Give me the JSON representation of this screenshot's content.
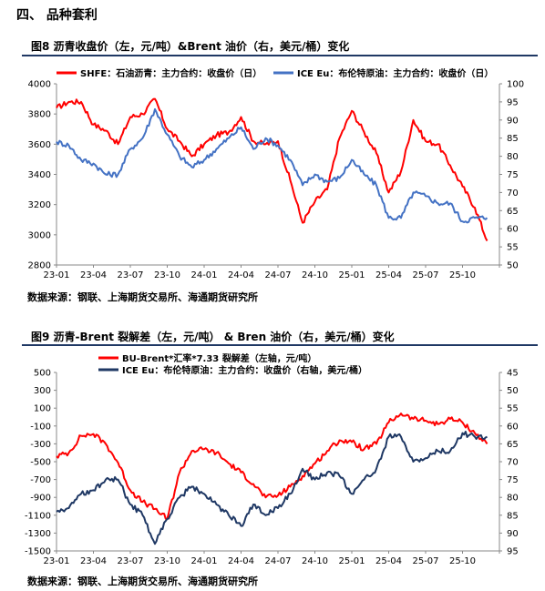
{
  "section": {
    "title": "四、 品种套利"
  },
  "figure8": {
    "title": "图8  沥青收盘价（左，元/吨）&Brent 油价（右，美元/桶）变化",
    "source": "数据来源：钢联、上海期货交易所、海通期货研究所"
  },
  "figure9": {
    "title": "图9  沥青-Brent 裂解差（左，元/吨） & Bren 油价（右，美元/桶）变化",
    "source": "数据来源：钢联、上海期货交易所、海通期货研究所"
  },
  "chart_data": [
    {
      "type": "line",
      "x_ticks": [
        "23-01",
        "23-04",
        "23-07",
        "23-10",
        "24-01",
        "24-04",
        "24-07",
        "24-10",
        "25-01",
        "25-04",
        "25-07",
        "25-10"
      ],
      "y_left": {
        "lim": [
          2800,
          4000
        ],
        "ticks": [
          2800,
          3000,
          3200,
          3400,
          3600,
          3800,
          4000
        ]
      },
      "y_right": {
        "lim": [
          50,
          100
        ],
        "ticks": [
          50,
          55,
          60,
          65,
          70,
          75,
          80,
          85,
          90,
          95,
          100
        ]
      },
      "grid": false,
      "legend_position": "top",
      "series": [
        {
          "name": "SHFE：石油沥青：主力合约：收盘价（日）",
          "axis": "left",
          "color": "#ff0000",
          "points": [
            [
              "23-01",
              3840
            ],
            [
              "23-02",
              3880
            ],
            [
              "23-03",
              3880
            ],
            [
              "23-04",
              3730
            ],
            [
              "23-05",
              3690
            ],
            [
              "23-06",
              3600
            ],
            [
              "23-07",
              3780
            ],
            [
              "23-08",
              3800
            ],
            [
              "23-09",
              3900
            ],
            [
              "23-10",
              3700
            ],
            [
              "23-11",
              3620
            ],
            [
              "23-12",
              3520
            ],
            [
              "24-01",
              3600
            ],
            [
              "24-02",
              3660
            ],
            [
              "24-03",
              3680
            ],
            [
              "24-04",
              3780
            ],
            [
              "24-05",
              3620
            ],
            [
              "24-06",
              3600
            ],
            [
              "24-07",
              3620
            ],
            [
              "24-08",
              3360
            ],
            [
              "24-09",
              3080
            ],
            [
              "24-10",
              3220
            ],
            [
              "24-11",
              3300
            ],
            [
              "24-12",
              3640
            ],
            [
              "25-01",
              3820
            ],
            [
              "25-02",
              3680
            ],
            [
              "25-03",
              3540
            ],
            [
              "25-04",
              3280
            ],
            [
              "25-05",
              3420
            ],
            [
              "25-06",
              3760
            ],
            [
              "25-07",
              3620
            ],
            [
              "25-08",
              3600
            ],
            [
              "25-09",
              3460
            ],
            [
              "25-10",
              3320
            ],
            [
              "25-11",
              3180
            ],
            [
              "25-12",
              2960
            ]
          ]
        },
        {
          "name": "ICE Eu：布伦特原油：主力合约：收盘价（日）",
          "axis": "right",
          "color": "#4472c4",
          "points": [
            [
              "23-01",
              84
            ],
            [
              "23-02",
              83
            ],
            [
              "23-03",
              79
            ],
            [
              "23-04",
              78
            ],
            [
              "23-05",
              75
            ],
            [
              "23-06",
              75
            ],
            [
              "23-07",
              82
            ],
            [
              "23-08",
              85
            ],
            [
              "23-09",
              93
            ],
            [
              "23-10",
              86
            ],
            [
              "23-11",
              80
            ],
            [
              "23-12",
              77
            ],
            [
              "24-01",
              79
            ],
            [
              "24-02",
              82
            ],
            [
              "24-03",
              85
            ],
            [
              "24-04",
              88
            ],
            [
              "24-05",
              82
            ],
            [
              "24-06",
              85
            ],
            [
              "24-07",
              83
            ],
            [
              "24-08",
              79
            ],
            [
              "24-09",
              72
            ],
            [
              "24-10",
              75
            ],
            [
              "24-11",
              73
            ],
            [
              "24-12",
              74
            ],
            [
              "25-01",
              79
            ],
            [
              "25-02",
              75
            ],
            [
              "25-03",
              72
            ],
            [
              "25-04",
              63
            ],
            [
              "25-05",
              63
            ],
            [
              "25-06",
              70
            ],
            [
              "25-07",
              69
            ],
            [
              "25-08",
              67
            ],
            [
              "25-09",
              67
            ],
            [
              "25-10",
              62
            ],
            [
              "25-11",
              63
            ],
            [
              "25-12",
              63
            ]
          ]
        }
      ]
    },
    {
      "type": "line",
      "x_ticks": [
        "23-01",
        "23-04",
        "23-07",
        "23-10",
        "24-01",
        "24-04",
        "24-07",
        "24-10",
        "25-01",
        "25-04",
        "25-07",
        "25-10"
      ],
      "y_left": {
        "lim": [
          -1500,
          500
        ],
        "ticks": [
          -1500,
          -1300,
          -1100,
          -900,
          -700,
          -500,
          -300,
          -100,
          100,
          300,
          500
        ]
      },
      "y_right": {
        "lim": [
          95,
          45
        ],
        "ticks": [
          95,
          90,
          85,
          80,
          75,
          70,
          65,
          60,
          55,
          50,
          45
        ],
        "reversed": true
      },
      "grid": false,
      "legend_position": "top",
      "series": [
        {
          "name": "BU-Brent*汇率*7.33 裂解差（左轴，元/吨）",
          "axis": "left",
          "color": "#ff0000",
          "points": [
            [
              "23-01",
              -440
            ],
            [
              "23-02",
              -400
            ],
            [
              "23-03",
              -210
            ],
            [
              "23-04",
              -190
            ],
            [
              "23-05",
              -300
            ],
            [
              "23-06",
              -510
            ],
            [
              "23-07",
              -820
            ],
            [
              "23-08",
              -950
            ],
            [
              "23-09",
              -1030
            ],
            [
              "23-10",
              -1140
            ],
            [
              "23-11",
              -620
            ],
            [
              "23-12",
              -380
            ],
            [
              "24-01",
              -360
            ],
            [
              "24-02",
              -400
            ],
            [
              "24-03",
              -520
            ],
            [
              "24-04",
              -620
            ],
            [
              "24-05",
              -750
            ],
            [
              "24-06",
              -900
            ],
            [
              "24-07",
              -880
            ],
            [
              "24-08",
              -780
            ],
            [
              "24-09",
              -660
            ],
            [
              "24-10",
              -520
            ],
            [
              "24-11",
              -380
            ],
            [
              "24-12",
              -260
            ],
            [
              "25-01",
              -280
            ],
            [
              "25-02",
              -360
            ],
            [
              "25-03",
              -300
            ],
            [
              "25-04",
              -60
            ],
            [
              "25-05",
              40
            ],
            [
              "25-06",
              -20
            ],
            [
              "25-07",
              -40
            ],
            [
              "25-08",
              -80
            ],
            [
              "25-09",
              -20
            ],
            [
              "25-10",
              -60
            ],
            [
              "25-11",
              -180
            ],
            [
              "25-12",
              -300
            ]
          ]
        },
        {
          "name": "ICE Eu：布伦特原油：主力合约：收盘价（右轴，美元/桶）",
          "axis": "right",
          "color": "#1f3864",
          "points": [
            [
              "23-01",
              84
            ],
            [
              "23-02",
              83
            ],
            [
              "23-03",
              79
            ],
            [
              "23-04",
              78
            ],
            [
              "23-05",
              75
            ],
            [
              "23-06",
              75
            ],
            [
              "23-07",
              82
            ],
            [
              "23-08",
              85
            ],
            [
              "23-09",
              93
            ],
            [
              "23-10",
              86
            ],
            [
              "23-11",
              80
            ],
            [
              "23-12",
              77
            ],
            [
              "24-01",
              79
            ],
            [
              "24-02",
              82
            ],
            [
              "24-03",
              85
            ],
            [
              "24-04",
              88
            ],
            [
              "24-05",
              82
            ],
            [
              "24-06",
              85
            ],
            [
              "24-07",
              83
            ],
            [
              "24-08",
              79
            ],
            [
              "24-09",
              72
            ],
            [
              "24-10",
              75
            ],
            [
              "24-11",
              73
            ],
            [
              "24-12",
              74
            ],
            [
              "25-01",
              79
            ],
            [
              "25-02",
              75
            ],
            [
              "25-03",
              72
            ],
            [
              "25-04",
              63
            ],
            [
              "25-05",
              63
            ],
            [
              "25-06",
              70
            ],
            [
              "25-07",
              69
            ],
            [
              "25-08",
              67
            ],
            [
              "25-09",
              67
            ],
            [
              "25-10",
              62
            ],
            [
              "25-11",
              63
            ],
            [
              "25-12",
              63
            ]
          ]
        }
      ]
    }
  ]
}
